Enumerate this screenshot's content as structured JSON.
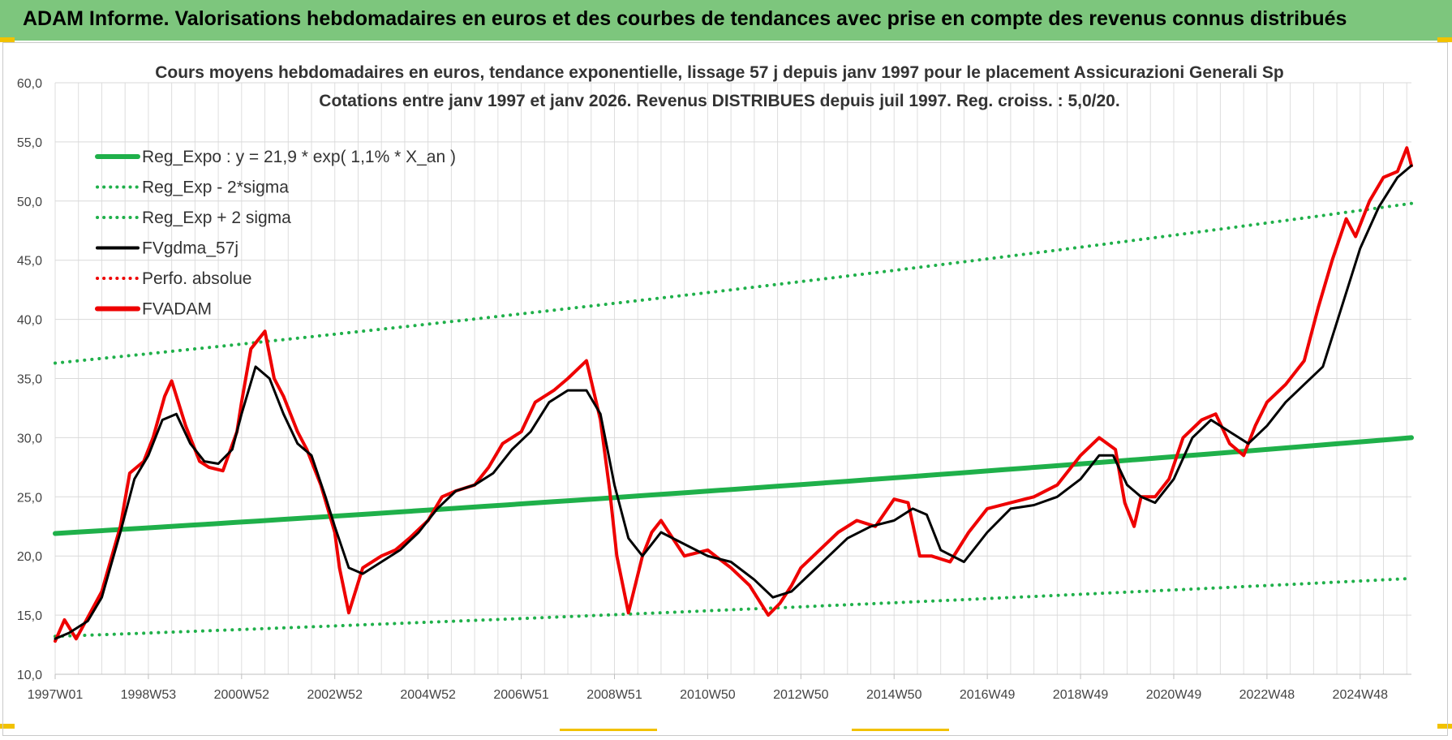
{
  "header": {
    "title": "ADAM Informe. Valorisations hebdomadaires en euros et des courbes de tendances avec prise en compte des revenus connus distribués"
  },
  "colors": {
    "header_bg": "#7dc67d",
    "reg": "#1fb04a",
    "fvgdma": "#000000",
    "fvadam": "#ee0000",
    "perfo": "#ee0000",
    "grid": "#d9d9d9"
  },
  "chart_data": {
    "type": "line",
    "title": "Cours moyens hebdomadaires en euros, tendance exponentielle, lissage 57 j depuis janv 1997 pour le placement Assicurazioni Generali Sp",
    "subtitle": "Cotations entre janv 1997 et janv 2026. Revenus DISTRIBUES depuis juil 1997. Reg. croiss. : 5,0/20.",
    "ylim": [
      10,
      60
    ],
    "xlim": [
      1997.0,
      2026.1
    ],
    "yticks": [
      "10,0",
      "15,0",
      "20,0",
      "25,0",
      "30,0",
      "35,0",
      "40,0",
      "45,0",
      "50,0",
      "55,0",
      "60,0"
    ],
    "xticks": [
      {
        "label": "1997W01",
        "x": 1997.0
      },
      {
        "label": "1998W53",
        "x": 1999.0
      },
      {
        "label": "2000W52",
        "x": 2001.0
      },
      {
        "label": "2002W52",
        "x": 2003.0
      },
      {
        "label": "2004W52",
        "x": 2005.0
      },
      {
        "label": "2006W51",
        "x": 2007.0
      },
      {
        "label": "2008W51",
        "x": 2009.0
      },
      {
        "label": "2010W50",
        "x": 2011.0
      },
      {
        "label": "2012W50",
        "x": 2013.0
      },
      {
        "label": "2014W50",
        "x": 2015.0
      },
      {
        "label": "2016W49",
        "x": 2017.0
      },
      {
        "label": "2018W49",
        "x": 2019.0
      },
      {
        "label": "2020W49",
        "x": 2021.0
      },
      {
        "label": "2022W48",
        "x": 2023.0
      },
      {
        "label": "2024W48",
        "x": 2025.0
      }
    ],
    "legend": [
      {
        "label": "Reg_Expo : y = 21,9 * exp( 1,1% *  X_an )",
        "style": "solid-thick",
        "color": "#1fb04a"
      },
      {
        "label": "Reg_Exp - 2*sigma",
        "style": "dotted",
        "color": "#1fb04a"
      },
      {
        "label": "Reg_Exp + 2 sigma",
        "style": "dotted",
        "color": "#1fb04a"
      },
      {
        "label": "FVgdma_57j",
        "style": "solid",
        "color": "#000000"
      },
      {
        "label": "Perfo. absolue",
        "style": "dotted",
        "color": "#ee0000"
      },
      {
        "label": "FVADAM",
        "style": "solid-thick",
        "color": "#ee0000"
      }
    ],
    "legend_position": "top-left",
    "grid": true,
    "series": [
      {
        "name": "Reg_Expo : y = 21,9 * exp( 1,1% *  X_an )",
        "x": [
          1997.0,
          2026.1
        ],
        "y": [
          21.9,
          30.0
        ]
      },
      {
        "name": "Reg_Exp - 2*sigma",
        "x": [
          1997.0,
          2026.1
        ],
        "y": [
          13.2,
          18.1
        ]
      },
      {
        "name": "Reg_Exp + 2 sigma",
        "x": [
          1997.0,
          2026.1
        ],
        "y": [
          36.3,
          49.8
        ]
      },
      {
        "name": "FVADAM",
        "x": [
          1997.0,
          1997.2,
          1997.45,
          1997.7,
          1998.0,
          1998.4,
          1998.6,
          1998.9,
          1999.1,
          1999.35,
          1999.5,
          1999.8,
          2000.1,
          2000.3,
          2000.6,
          2000.9,
          2001.0,
          2001.2,
          2001.5,
          2001.7,
          2001.9,
          2002.2,
          2002.4,
          2002.7,
          2003.0,
          2003.1,
          2003.3,
          2003.6,
          2004.0,
          2004.3,
          2004.6,
          2005.0,
          2005.3,
          2005.6,
          2006.0,
          2006.3,
          2006.6,
          2007.0,
          2007.3,
          2007.7,
          2008.0,
          2008.4,
          2008.7,
          2008.9,
          2009.05,
          2009.3,
          2009.6,
          2009.8,
          2010.0,
          2010.5,
          2011.0,
          2011.5,
          2011.9,
          2012.3,
          2012.55,
          2012.8,
          2013.0,
          2013.4,
          2013.8,
          2014.2,
          2014.6,
          2015.0,
          2015.3,
          2015.55,
          2015.8,
          2016.2,
          2016.6,
          2017.0,
          2017.5,
          2018.0,
          2018.5,
          2019.0,
          2019.4,
          2019.75,
          2019.95,
          2020.15,
          2020.3,
          2020.6,
          2020.9,
          2021.2,
          2021.6,
          2021.9,
          2022.2,
          2022.5,
          2022.75,
          2023.0,
          2023.4,
          2023.8,
          2024.1,
          2024.4,
          2024.7,
          2024.9,
          2025.2,
          2025.5,
          2025.8,
          2026.0,
          2026.1
        ],
        "y": [
          12.8,
          14.6,
          13.0,
          14.8,
          17.0,
          22.5,
          27.0,
          28.0,
          30.0,
          33.5,
          34.8,
          31.0,
          28.0,
          27.5,
          27.2,
          30.5,
          33.0,
          37.5,
          39.0,
          35.0,
          33.5,
          30.5,
          29.0,
          26.0,
          22.0,
          19.0,
          15.2,
          19.0,
          20.0,
          20.5,
          21.5,
          23.0,
          25.0,
          25.5,
          26.0,
          27.5,
          29.5,
          30.5,
          33.0,
          34.0,
          35.0,
          36.5,
          31.5,
          25.5,
          20.0,
          15.2,
          20.0,
          22.0,
          23.0,
          20.0,
          20.5,
          19.0,
          17.5,
          15.0,
          16.0,
          17.5,
          19.0,
          20.5,
          22.0,
          23.0,
          22.5,
          24.8,
          24.5,
          20.0,
          20.0,
          19.5,
          22.0,
          24.0,
          24.5,
          25.0,
          26.0,
          28.5,
          30.0,
          29.0,
          24.5,
          22.5,
          25.0,
          25.0,
          26.5,
          30.0,
          31.5,
          32.0,
          29.5,
          28.5,
          31.0,
          33.0,
          34.5,
          36.5,
          41.0,
          45.0,
          48.5,
          47.0,
          50.0,
          52.0,
          52.5,
          54.5,
          53.0
        ]
      },
      {
        "name": "FVgdma_57j",
        "x": [
          1997.0,
          1997.3,
          1997.7,
          1998.0,
          1998.4,
          1998.7,
          1999.0,
          1999.3,
          1999.6,
          1999.9,
          2000.2,
          2000.5,
          2000.8,
          2001.0,
          2001.3,
          2001.6,
          2001.9,
          2002.2,
          2002.5,
          2002.8,
          2003.0,
          2003.3,
          2003.6,
          2004.0,
          2004.4,
          2004.8,
          2005.2,
          2005.6,
          2006.0,
          2006.4,
          2006.8,
          2007.2,
          2007.6,
          2008.0,
          2008.4,
          2008.7,
          2009.0,
          2009.3,
          2009.6,
          2010.0,
          2010.5,
          2011.0,
          2011.5,
          2012.0,
          2012.4,
          2012.8,
          2013.2,
          2013.6,
          2014.0,
          2014.5,
          2015.0,
          2015.4,
          2015.7,
          2016.0,
          2016.5,
          2017.0,
          2017.5,
          2018.0,
          2018.5,
          2019.0,
          2019.4,
          2019.7,
          2020.0,
          2020.3,
          2020.6,
          2021.0,
          2021.4,
          2021.8,
          2022.2,
          2022.6,
          2023.0,
          2023.4,
          2023.8,
          2024.2,
          2024.6,
          2025.0,
          2025.4,
          2025.8,
          2026.1
        ],
        "y": [
          13.0,
          13.5,
          14.5,
          16.5,
          22.0,
          26.5,
          28.5,
          31.5,
          32.0,
          29.5,
          28.0,
          27.8,
          29.0,
          32.0,
          36.0,
          35.0,
          32.0,
          29.5,
          28.5,
          25.0,
          22.5,
          19.0,
          18.5,
          19.5,
          20.5,
          22.0,
          24.0,
          25.5,
          26.0,
          27.0,
          29.0,
          30.5,
          33.0,
          34.0,
          34.0,
          32.0,
          26.0,
          21.5,
          20.0,
          22.0,
          21.0,
          20.0,
          19.5,
          18.0,
          16.5,
          17.0,
          18.5,
          20.0,
          21.5,
          22.5,
          23.0,
          24.0,
          23.5,
          20.5,
          19.5,
          22.0,
          24.0,
          24.3,
          25.0,
          26.5,
          28.5,
          28.5,
          26.0,
          25.0,
          24.5,
          26.5,
          30.0,
          31.5,
          30.5,
          29.5,
          31.0,
          33.0,
          34.5,
          36.0,
          41.0,
          46.0,
          49.5,
          52.0,
          53.0
        ]
      }
    ]
  }
}
